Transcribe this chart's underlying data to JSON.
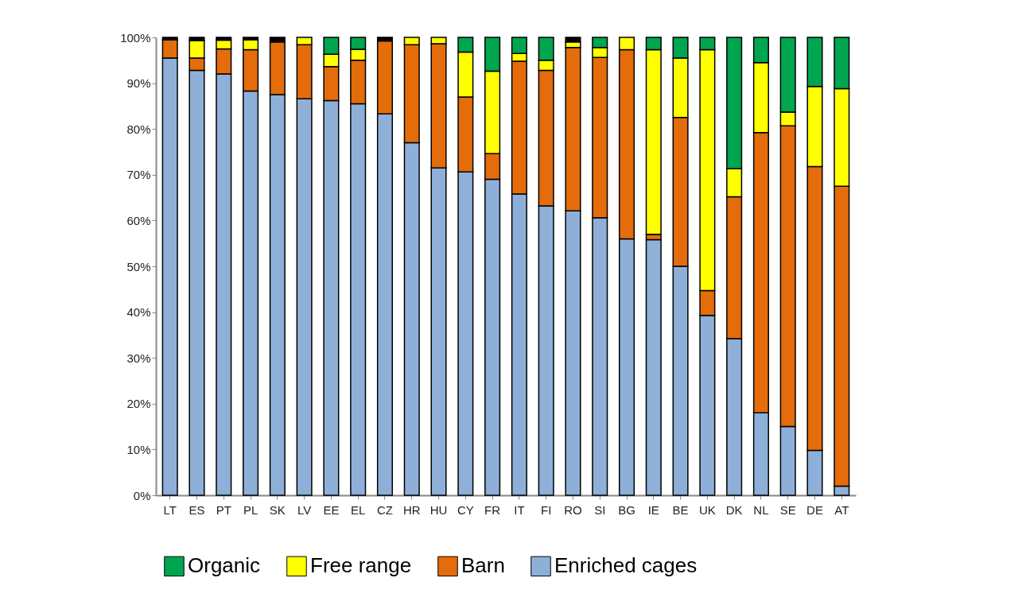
{
  "chart_data": {
    "type": "bar",
    "stacked": true,
    "legend": "bottom",
    "grid": false,
    "categories": [
      "LT",
      "ES",
      "PT",
      "PL",
      "SK",
      "LV",
      "EE",
      "EL",
      "CZ",
      "HR",
      "HU",
      "CY",
      "FR",
      "IT",
      "FI",
      "RO",
      "SI",
      "BG",
      "IE",
      "BE",
      "UK",
      "DK",
      "NL",
      "SE",
      "DE",
      "AT"
    ],
    "ylim": [
      0,
      100
    ],
    "yticks": [
      {
        "value": 0,
        "label": "0%"
      },
      {
        "value": 10,
        "label": "10%"
      },
      {
        "value": 20,
        "label": "20%"
      },
      {
        "value": 30,
        "label": "30%"
      },
      {
        "value": 40,
        "label": "40%"
      },
      {
        "value": 50,
        "label": "50%"
      },
      {
        "value": 60,
        "label": "60%"
      },
      {
        "value": 70,
        "label": "70%"
      },
      {
        "value": 80,
        "label": "80%"
      },
      {
        "value": 90,
        "label": "90%"
      },
      {
        "value": 100,
        "label": "100%"
      }
    ],
    "series": [
      {
        "name": "Enriched cages",
        "color": "#8eb0d8",
        "values": [
          95.5,
          92.8,
          92,
          88.3,
          87.5,
          86.6,
          86.2,
          85.5,
          83.3,
          77,
          71.5,
          70.6,
          69,
          65.8,
          63.2,
          62.1,
          60.6,
          56,
          55.8,
          50,
          39.3,
          34.2,
          18,
          15,
          9.8,
          2
        ]
      },
      {
        "name": "Barn",
        "color": "#e46c0a",
        "values": [
          4,
          2.7,
          5.5,
          9,
          11.5,
          11.8,
          7.4,
          9.5,
          15.9,
          21.4,
          27.1,
          16.4,
          5.6,
          29,
          29.6,
          35.7,
          35,
          41.3,
          1.2,
          32.5,
          5.4,
          31,
          61.2,
          65.7,
          62,
          65.5
        ]
      },
      {
        "name": "Free range",
        "color": "#ffff00",
        "values": [
          null,
          3.8,
          1.9,
          2.2,
          null,
          1.6,
          2.7,
          2.4,
          null,
          1.6,
          1.4,
          9.8,
          18,
          1.7,
          2.2,
          1.2,
          2.2,
          2.7,
          40.3,
          13,
          52.6,
          6.1,
          15.3,
          3,
          17.5,
          21.3
        ]
      },
      {
        "name": "Organic",
        "color": "#00a550",
        "values": [
          null,
          null,
          null,
          null,
          null,
          null,
          3.7,
          2.6,
          null,
          null,
          null,
          3.2,
          7.4,
          3.5,
          5,
          null,
          2.2,
          null,
          2.7,
          4.5,
          2.7,
          28.7,
          5.5,
          16.3,
          10.7,
          11.2
        ]
      },
      {
        "color": "#000000",
        "values": [
          0.5,
          0.7,
          0.6,
          0.5,
          1,
          null,
          null,
          null,
          0.8,
          null,
          null,
          null,
          null,
          null,
          null,
          1,
          null,
          null,
          null,
          null,
          null,
          null,
          null,
          null,
          null,
          null
        ]
      }
    ]
  }
}
